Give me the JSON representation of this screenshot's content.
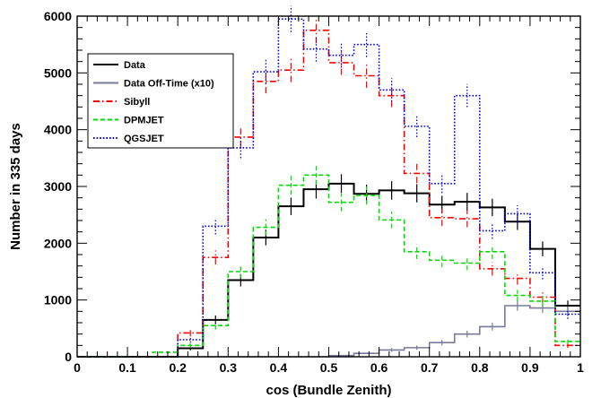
{
  "chart_data": {
    "type": "step-histogram",
    "xlabel": "cos (Bundle Zenith)",
    "ylabel": "Number in 335 days",
    "xlim": [
      0,
      1
    ],
    "ylim": [
      0,
      6000
    ],
    "bin_width": 0.05,
    "x_ticks": [
      "0",
      "0.1",
      "0.2",
      "0.3",
      "0.4",
      "0.5",
      "0.6",
      "0.7",
      "0.8",
      "0.9",
      "1"
    ],
    "x_tick_values": [
      0,
      0.1,
      0.2,
      0.3,
      0.4,
      0.5,
      0.6,
      0.7,
      0.8,
      0.9,
      1.0
    ],
    "y_ticks": [
      "0",
      "1000",
      "2000",
      "3000",
      "4000",
      "5000",
      "6000"
    ],
    "y_tick_values": [
      0,
      1000,
      2000,
      3000,
      4000,
      5000,
      6000
    ],
    "legend_position": "top-left",
    "series": [
      {
        "name": "Data",
        "color": "#000000",
        "dash": "solid",
        "values": [
          0,
          0,
          0,
          0,
          150,
          650,
          1350,
          2100,
          2650,
          2950,
          3050,
          2870,
          2930,
          2880,
          2680,
          2730,
          2630,
          2380,
          1900,
          900
        ]
      },
      {
        "name": "Data Off-Time (x10)",
        "color": "#7a7a99",
        "dash": "solid",
        "values": [
          0,
          0,
          0,
          0,
          0,
          0,
          0,
          0,
          0,
          0,
          20,
          60,
          120,
          160,
          250,
          400,
          530,
          900,
          860,
          800
        ]
      },
      {
        "name": "Sibyll",
        "color": "#ff0000",
        "dash": "dashdot",
        "values": [
          0,
          0,
          0,
          0,
          420,
          1750,
          3870,
          4850,
          5050,
          5750,
          5180,
          4950,
          4600,
          3230,
          2450,
          2430,
          1550,
          1380,
          1050,
          200
        ]
      },
      {
        "name": "DPMJET",
        "color": "#00dd00",
        "dash": "dashed",
        "values": [
          0,
          0,
          0,
          80,
          200,
          550,
          1500,
          2280,
          3020,
          3200,
          2720,
          2840,
          2410,
          1850,
          1700,
          1650,
          1850,
          1080,
          980,
          270
        ]
      },
      {
        "name": "QGSJET",
        "color": "#0000dd",
        "dash": "dotted",
        "values": [
          0,
          0,
          0,
          0,
          300,
          2300,
          3680,
          5020,
          5950,
          5420,
          5310,
          5500,
          4700,
          4060,
          3050,
          4600,
          2220,
          2520,
          1480,
          750
        ]
      }
    ]
  }
}
